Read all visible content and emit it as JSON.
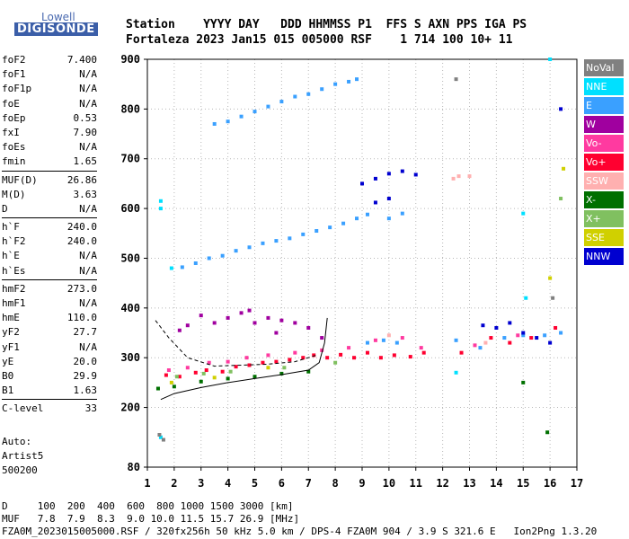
{
  "logo": {
    "top": "Lowell",
    "main": "DIGISONDE"
  },
  "header": {
    "line1": "Station    YYYY DAY   DDD HHMMSS P1  FFS S AXN PPS IGA PS",
    "line2": "Fortaleza 2023 Jan15 015 005000 RSF    1 714 100 10+ 11"
  },
  "params": [
    {
      "label": "foF2",
      "value": "7.400"
    },
    {
      "label": "foF1",
      "value": "N/A"
    },
    {
      "label": "foF1p",
      "value": "N/A"
    },
    {
      "label": "foE",
      "value": "N/A"
    },
    {
      "label": "foEp",
      "value": "0.53"
    },
    {
      "label": "fxI",
      "value": "7.90"
    },
    {
      "label": "foEs",
      "value": "N/A"
    },
    {
      "label": "fmin",
      "value": "1.65"
    },
    {
      "label": "MUF(D)",
      "value": "26.86",
      "sep": true
    },
    {
      "label": "M(D)",
      "value": "3.63"
    },
    {
      "label": "D",
      "value": "N/A"
    },
    {
      "label": "h`F",
      "value": "240.0",
      "sep": true
    },
    {
      "label": "h`F2",
      "value": "240.0"
    },
    {
      "label": "h`E",
      "value": "N/A"
    },
    {
      "label": "h`Es",
      "value": "N/A"
    },
    {
      "label": "hmF2",
      "value": "273.0",
      "sep": true
    },
    {
      "label": "hmF1",
      "value": "N/A"
    },
    {
      "label": "hmE",
      "value": "110.0"
    },
    {
      "label": "yF2",
      "value": "27.7"
    },
    {
      "label": "yF1",
      "value": "N/A"
    },
    {
      "label": "yE",
      "value": "20.0"
    },
    {
      "label": "B0",
      "value": "29.9"
    },
    {
      "label": "B1",
      "value": "1.63"
    },
    {
      "label": "C-level",
      "value": "33",
      "sep": true
    }
  ],
  "auto": {
    "line1": "Auto:",
    "line2": "Artist5",
    "line3": "500200"
  },
  "legend": [
    {
      "label": "NoVal",
      "color": "#808080"
    },
    {
      "label": "NNE",
      "color": "#00e0ff"
    },
    {
      "label": "E",
      "color": "#3aa0ff"
    },
    {
      "label": "W",
      "color": "#a0009f"
    },
    {
      "label": "Vo-",
      "color": "#ff3aa0"
    },
    {
      "label": "Vo+",
      "color": "#ff0030"
    },
    {
      "label": "SSW",
      "color": "#ffb0b0"
    },
    {
      "label": "X-",
      "color": "#007000"
    },
    {
      "label": "X+",
      "color": "#80c060"
    },
    {
      "label": "SSE",
      "color": "#d0d000"
    },
    {
      "label": "NNW",
      "color": "#0000d0"
    }
  ],
  "bottom": {
    "line1": "D     100  200  400  600  800 1000 1500 3000 [km]",
    "line2": "MUF   7.8  7.9  8.3  9.0 10.0 11.5 15.7 26.9 [MHz]",
    "line3": "FZA0M_2023015005000.RSF / 320fx256h 50 kHz 5.0 km / DPS-4 FZA0M 904 / 3.9 S 321.6 E   Ion2Png 1.3.20"
  },
  "chart_data": {
    "type": "scatter",
    "xlim": [
      1,
      17
    ],
    "ylim": [
      80,
      900
    ],
    "x_ticks": [
      1,
      2,
      3,
      4,
      5,
      6,
      7,
      8,
      9,
      10,
      11,
      12,
      13,
      14,
      15,
      16,
      17
    ],
    "y_ticks": [
      80,
      200,
      300,
      400,
      500,
      600,
      700,
      800,
      900
    ],
    "grid": true,
    "series": [
      {
        "name": "Vo+",
        "color": "#ff0030",
        "points": [
          [
            1.7,
            265
          ],
          [
            2.2,
            262
          ],
          [
            2.8,
            270
          ],
          [
            3.2,
            275
          ],
          [
            3.8,
            272
          ],
          [
            4.3,
            282
          ],
          [
            4.8,
            285
          ],
          [
            5.3,
            290
          ],
          [
            5.8,
            292
          ],
          [
            6.3,
            296
          ],
          [
            6.8,
            300
          ],
          [
            7.2,
            305
          ],
          [
            7.7,
            300
          ],
          [
            8.2,
            306
          ],
          [
            8.7,
            300
          ],
          [
            9.2,
            310
          ],
          [
            9.7,
            300
          ],
          [
            10.2,
            305
          ],
          [
            10.8,
            302
          ],
          [
            11.3,
            310
          ],
          [
            12.7,
            310
          ],
          [
            13.8,
            340
          ],
          [
            14.5,
            330
          ],
          [
            15.3,
            340
          ],
          [
            16.2,
            360
          ]
        ]
      },
      {
        "name": "Vo-",
        "color": "#ff3aa0",
        "points": [
          [
            1.8,
            275
          ],
          [
            2.5,
            280
          ],
          [
            3.3,
            290
          ],
          [
            4.0,
            292
          ],
          [
            4.7,
            300
          ],
          [
            5.5,
            305
          ],
          [
            6.5,
            310
          ],
          [
            7.5,
            315
          ],
          [
            8.5,
            320
          ],
          [
            9.5,
            335
          ],
          [
            10.5,
            340
          ],
          [
            11.2,
            320
          ],
          [
            13.2,
            325
          ],
          [
            14.8,
            345
          ]
        ]
      },
      {
        "name": "W",
        "color": "#a0009f",
        "points": [
          [
            2.5,
            365
          ],
          [
            3.0,
            385
          ],
          [
            3.5,
            370
          ],
          [
            4.0,
            380
          ],
          [
            4.5,
            390
          ],
          [
            5.0,
            370
          ],
          [
            5.5,
            380
          ],
          [
            6.0,
            375
          ],
          [
            6.5,
            370
          ],
          [
            7.0,
            360
          ],
          [
            7.5,
            340
          ],
          [
            2.2,
            355
          ],
          [
            4.8,
            395
          ],
          [
            5.8,
            350
          ]
        ]
      },
      {
        "name": "E",
        "color": "#3aa0ff",
        "points": [
          [
            2.3,
            482
          ],
          [
            2.8,
            490
          ],
          [
            3.3,
            500
          ],
          [
            3.8,
            505
          ],
          [
            4.3,
            515
          ],
          [
            4.8,
            522
          ],
          [
            5.3,
            530
          ],
          [
            5.8,
            535
          ],
          [
            6.3,
            540
          ],
          [
            6.8,
            548
          ],
          [
            7.3,
            555
          ],
          [
            7.8,
            562
          ],
          [
            8.3,
            570
          ],
          [
            8.8,
            580
          ],
          [
            9.2,
            588
          ],
          [
            10.0,
            580
          ],
          [
            10.5,
            590
          ],
          [
            3.5,
            770
          ],
          [
            4.0,
            775
          ],
          [
            4.5,
            785
          ],
          [
            5.0,
            795
          ],
          [
            5.5,
            805
          ],
          [
            6.0,
            815
          ],
          [
            6.5,
            825
          ],
          [
            7.0,
            830
          ],
          [
            7.5,
            840
          ],
          [
            8.0,
            850
          ],
          [
            8.5,
            855
          ],
          [
            8.8,
            860
          ],
          [
            9.2,
            330
          ],
          [
            9.8,
            335
          ],
          [
            10.3,
            330
          ],
          [
            12.5,
            335
          ],
          [
            13.4,
            320
          ],
          [
            14.3,
            340
          ],
          [
            15.0,
            345
          ],
          [
            15.8,
            345
          ],
          [
            16.4,
            350
          ]
        ]
      },
      {
        "name": "NNW",
        "color": "#0000d0",
        "points": [
          [
            9.0,
            650
          ],
          [
            9.5,
            660
          ],
          [
            10.0,
            670
          ],
          [
            10.5,
            675
          ],
          [
            11.0,
            668
          ],
          [
            9.5,
            612
          ],
          [
            10.0,
            620
          ],
          [
            13.5,
            365
          ],
          [
            14.0,
            360
          ],
          [
            14.5,
            370
          ],
          [
            15.0,
            350
          ],
          [
            15.5,
            340
          ],
          [
            16.0,
            330
          ],
          [
            16.4,
            800
          ]
        ]
      },
      {
        "name": "NNE",
        "color": "#00e0ff",
        "points": [
          [
            1.5,
            615
          ],
          [
            1.5,
            600
          ],
          [
            1.9,
            480
          ],
          [
            1.5,
            140
          ],
          [
            12.5,
            270
          ],
          [
            15.0,
            590
          ],
          [
            15.1,
            420
          ],
          [
            16.0,
            900
          ]
        ]
      },
      {
        "name": "X-",
        "color": "#007000",
        "points": [
          [
            1.4,
            238
          ],
          [
            2.0,
            242
          ],
          [
            3.0,
            252
          ],
          [
            4.0,
            258
          ],
          [
            5.0,
            262
          ],
          [
            6.0,
            268
          ],
          [
            7.0,
            272
          ],
          [
            15.0,
            250
          ],
          [
            15.9,
            150
          ]
        ]
      },
      {
        "name": "X+",
        "color": "#80c060",
        "points": [
          [
            2.1,
            262
          ],
          [
            3.1,
            268
          ],
          [
            4.1,
            272
          ],
          [
            6.1,
            280
          ],
          [
            8.0,
            290
          ],
          [
            16.4,
            620
          ]
        ]
      },
      {
        "name": "SSE",
        "color": "#d0d000",
        "points": [
          [
            1.9,
            250
          ],
          [
            3.5,
            260
          ],
          [
            5.5,
            280
          ],
          [
            16.0,
            460
          ],
          [
            16.5,
            680
          ]
        ]
      },
      {
        "name": "SSW",
        "color": "#ffb0b0",
        "points": [
          [
            12.4,
            660
          ],
          [
            12.6,
            665
          ],
          [
            13.0,
            665
          ],
          [
            10.0,
            345
          ],
          [
            13.6,
            330
          ]
        ]
      },
      {
        "name": "NoVal",
        "color": "#808080",
        "points": [
          [
            1.45,
            145
          ],
          [
            1.6,
            135
          ],
          [
            12.5,
            860
          ],
          [
            16.1,
            420
          ]
        ]
      }
    ],
    "profile_curve": [
      [
        1.5,
        216
      ],
      [
        2,
        228
      ],
      [
        3,
        240
      ],
      [
        4,
        250
      ],
      [
        5,
        258
      ],
      [
        6,
        266
      ],
      [
        7,
        275
      ],
      [
        7.4,
        290
      ],
      [
        7.6,
        330
      ],
      [
        7.7,
        380
      ]
    ],
    "trace_curve": [
      [
        1.3,
        375
      ],
      [
        1.8,
        340
      ],
      [
        2.5,
        300
      ],
      [
        3.5,
        283
      ],
      [
        4.5,
        285
      ],
      [
        5.5,
        287
      ],
      [
        6.5,
        292
      ],
      [
        7.3,
        305
      ]
    ]
  }
}
